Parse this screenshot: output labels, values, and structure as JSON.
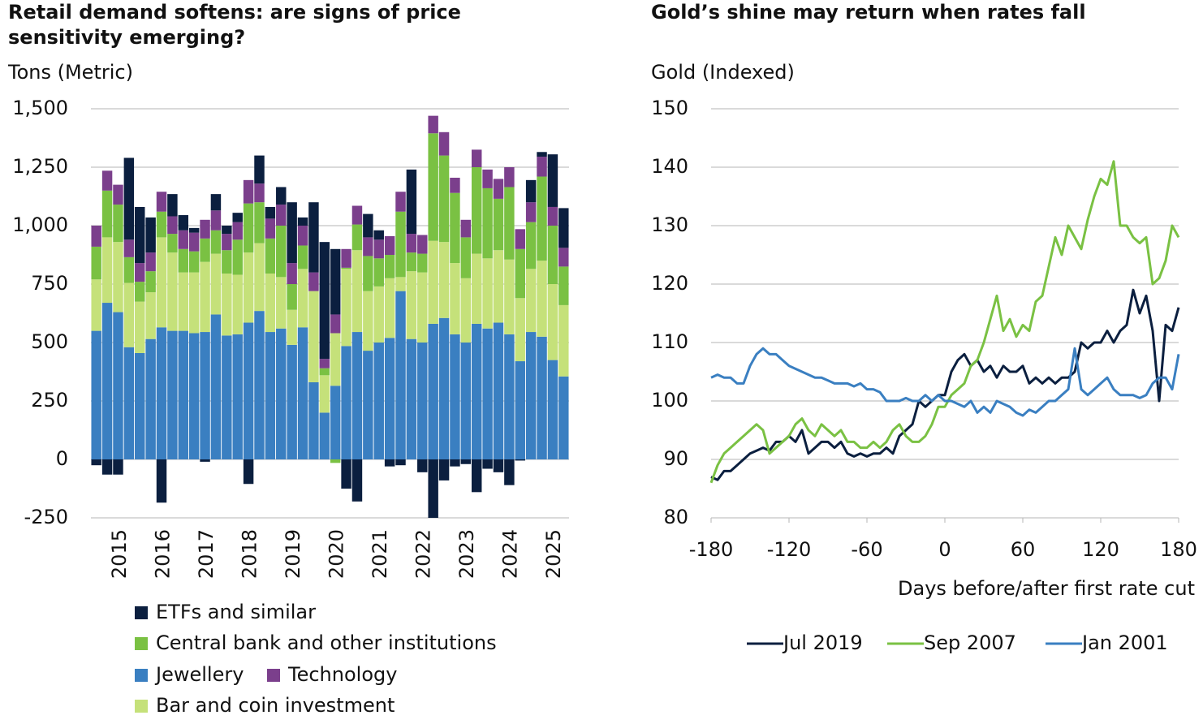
{
  "chart_data": [
    {
      "type": "bar",
      "stacked": true,
      "title": "Retail demand softens: are signs of price sensitivity emerging?",
      "y_label": "Tons (Metric)",
      "categories": [
        null,
        "2015",
        null,
        null,
        null,
        "2016",
        null,
        null,
        null,
        "2017",
        null,
        null,
        null,
        "2018",
        null,
        null,
        null,
        "2019",
        null,
        null,
        null,
        "2020",
        null,
        null,
        null,
        "2021",
        null,
        null,
        null,
        "2022",
        null,
        null,
        null,
        "2023",
        null,
        null,
        null,
        "2024",
        null,
        null,
        null,
        "2025",
        null,
        null
      ],
      "ylim": [
        -250,
        1500
      ],
      "yticks": [
        -250,
        0,
        250,
        500,
        750,
        {
          "value": 1000,
          "label": "1,000"
        },
        {
          "value": 1250,
          "label": "1,250"
        },
        {
          "value": 1500,
          "label": "1,500"
        }
      ],
      "grid": true,
      "series": [
        {
          "name": "Jewellery",
          "color": "#3a7fc1",
          "values": [
            550,
            670,
            630,
            480,
            455,
            515,
            565,
            550,
            550,
            540,
            545,
            620,
            530,
            535,
            585,
            635,
            545,
            560,
            490,
            565,
            330,
            200,
            315,
            485,
            545,
            465,
            500,
            520,
            720,
            515,
            500,
            580,
            605,
            535,
            500,
            580,
            560,
            585,
            535,
            420,
            545,
            525,
            425,
            355
          ]
        },
        {
          "name": "Bar and coin investment",
          "color": "#c5e17a",
          "values": [
            220,
            280,
            300,
            275,
            220,
            200,
            385,
            335,
            250,
            260,
            300,
            260,
            265,
            255,
            300,
            290,
            250,
            220,
            150,
            250,
            390,
            160,
            225,
            330,
            350,
            255,
            240,
            255,
            60,
            290,
            300,
            355,
            325,
            305,
            275,
            300,
            300,
            310,
            320,
            270,
            270,
            325,
            325,
            305
          ]
        },
        {
          "name": "Central bank and other institutions",
          "color": "#7ac143",
          "values": [
            140,
            200,
            160,
            110,
            85,
            90,
            110,
            80,
            100,
            90,
            100,
            100,
            100,
            150,
            210,
            175,
            150,
            220,
            110,
            100,
            0,
            30,
            -15,
            5,
            110,
            150,
            120,
            100,
            280,
            80,
            80,
            460,
            370,
            300,
            175,
            370,
            300,
            220,
            310,
            210,
            200,
            360,
            250,
            165
          ]
        },
        {
          "name": "Technology",
          "color": "#7b3f8c",
          "values": [
            90,
            85,
            85,
            75,
            80,
            80,
            85,
            75,
            80,
            80,
            80,
            85,
            70,
            75,
            100,
            80,
            85,
            90,
            90,
            85,
            80,
            40,
            80,
            80,
            80,
            80,
            80,
            80,
            85,
            80,
            80,
            75,
            100,
            65,
            75,
            75,
            80,
            85,
            85,
            85,
            85,
            85,
            80,
            80
          ]
        },
        {
          "name": "ETFs and similar",
          "color": "#0b1f3f",
          "values": [
            -25,
            -65,
            -65,
            350,
            240,
            150,
            -185,
            95,
            65,
            20,
            -10,
            70,
            35,
            40,
            -105,
            120,
            50,
            75,
            260,
            35,
            300,
            500,
            280,
            -125,
            -180,
            100,
            40,
            -30,
            -25,
            275,
            -55,
            -250,
            -90,
            -30,
            -20,
            -140,
            -40,
            -55,
            -110,
            -5,
            95,
            20,
            225,
            170
          ]
        }
      ]
    },
    {
      "type": "line",
      "title": "Gold’s shine may return when rates fall",
      "y_label": "Gold (Indexed)",
      "x_label": "Days before/after first rate cut",
      "x": [
        -180,
        -175,
        -170,
        -165,
        -160,
        -155,
        -150,
        -145,
        -140,
        -135,
        -130,
        -125,
        -120,
        -115,
        -110,
        -105,
        -100,
        -95,
        -90,
        -85,
        -80,
        -75,
        -70,
        -65,
        -60,
        -55,
        -50,
        -45,
        -40,
        -35,
        -30,
        -25,
        -20,
        -15,
        -10,
        -5,
        0,
        5,
        10,
        15,
        20,
        25,
        30,
        35,
        40,
        45,
        50,
        55,
        60,
        65,
        70,
        75,
        80,
        85,
        90,
        95,
        100,
        105,
        110,
        115,
        120,
        125,
        130,
        135,
        140,
        145,
        150,
        155,
        160,
        165,
        170,
        175,
        180
      ],
      "xlim": [
        -180,
        180
      ],
      "xticks": [
        -180,
        -120,
        -60,
        0,
        60,
        120,
        180
      ],
      "ylim": [
        80,
        150
      ],
      "yticks": [
        80,
        90,
        100,
        110,
        120,
        130,
        140,
        150
      ],
      "grid": true,
      "series": [
        {
          "name": "Jul 2019",
          "color": "#0b1f3f",
          "values": [
            87,
            86.5,
            88,
            88,
            89,
            90,
            91,
            91.5,
            92,
            91.5,
            93,
            93,
            94,
            93,
            95,
            91,
            92,
            93,
            93,
            92,
            93,
            91,
            90.5,
            91,
            90.5,
            91,
            91,
            92,
            91,
            94,
            95,
            96,
            100,
            99,
            100,
            101,
            101,
            105,
            107,
            108,
            106,
            107,
            105,
            106,
            104,
            106,
            105,
            105,
            106,
            103,
            104,
            103,
            104,
            103,
            104,
            104,
            105,
            110,
            109,
            110,
            110,
            112,
            110,
            112,
            113,
            119,
            115,
            118,
            112,
            100,
            113,
            112,
            116
          ]
        },
        {
          "name": "Sep 2007",
          "color": "#7ac143",
          "values": [
            86,
            89,
            91,
            92,
            93,
            94,
            95,
            96,
            95,
            91,
            92,
            93,
            94,
            96,
            97,
            95,
            94,
            96,
            95,
            94,
            95,
            93,
            93,
            92,
            92,
            93,
            92,
            93,
            95,
            96,
            94,
            93,
            93,
            94,
            96,
            99,
            99,
            101,
            102,
            103,
            106,
            107,
            110,
            114,
            118,
            112,
            114,
            111,
            113,
            112,
            117,
            118,
            123,
            128,
            125,
            130,
            128,
            126,
            131,
            135,
            138,
            137,
            141,
            130,
            130,
            128,
            127,
            128,
            120,
            121,
            124,
            130,
            128
          ]
        },
        {
          "name": "Jan 2001",
          "color": "#3a7fc1",
          "values": [
            104,
            104.5,
            104,
            104,
            103,
            103,
            106,
            108,
            109,
            108,
            108,
            107,
            106,
            105.5,
            105,
            104.5,
            104,
            104,
            103.5,
            103,
            103,
            103,
            102.5,
            103,
            102,
            102,
            101.5,
            100,
            100,
            100,
            100.5,
            100,
            100,
            101,
            100,
            101,
            100,
            100,
            99.5,
            99,
            100,
            98,
            99,
            98,
            100,
            99.5,
            99,
            98,
            97.5,
            98.5,
            98,
            99,
            100,
            100,
            101,
            102,
            109,
            102,
            101,
            102,
            103,
            104,
            102,
            101,
            101,
            101,
            100.5,
            101,
            103,
            104,
            104,
            102,
            108
          ]
        }
      ]
    }
  ]
}
